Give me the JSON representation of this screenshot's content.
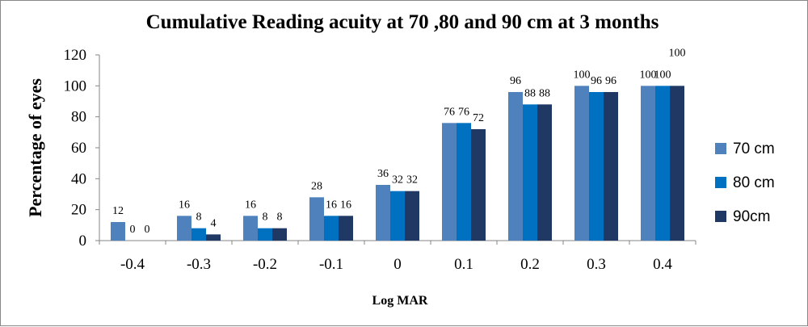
{
  "chart_data": {
    "type": "bar",
    "title": "Cumulative Reading acuity at 70 ,80 and 90 cm at 3 months",
    "xlabel": "Log MAR",
    "ylabel": "Percentage of eyes",
    "categories": [
      "-0.4",
      "-0.3",
      "-0.2",
      "-0.1",
      "0",
      "0.1",
      "0.2",
      "0.3",
      "0.4"
    ],
    "ylim": [
      0,
      120
    ],
    "yticks": [
      0,
      20,
      40,
      60,
      80,
      100,
      120
    ],
    "grid": false,
    "legend_position": "right",
    "series": [
      {
        "name": "70 cm",
        "color": "#4f81bd",
        "values": [
          12,
          16,
          16,
          28,
          36,
          76,
          96,
          100,
          100
        ]
      },
      {
        "name": "80 cm",
        "color": "#0070c0",
        "values": [
          0,
          8,
          8,
          16,
          32,
          76,
          88,
          96,
          100
        ]
      },
      {
        "name": "90cm",
        "color": "#1f3864",
        "values": [
          0,
          4,
          8,
          16,
          32,
          72,
          88,
          96,
          100
        ]
      }
    ]
  }
}
